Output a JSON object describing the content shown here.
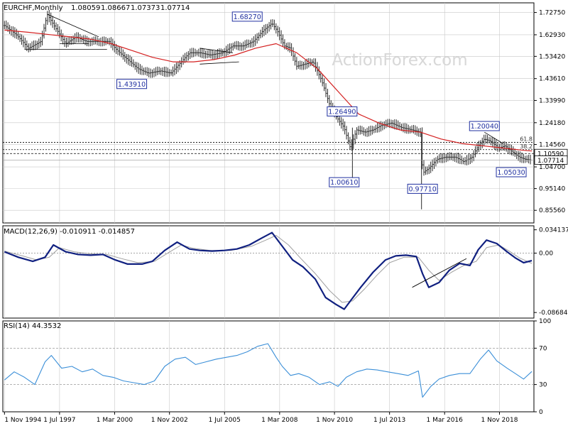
{
  "chart_data": [
    {
      "type": "candlestick",
      "symbol": "EURCHF,Monthly",
      "ohlc": [
        "1.08059",
        "1.08667",
        "1.07373",
        "1.07714"
      ],
      "watermark": "ActionForex.com",
      "ylim": [
        0.8,
        1.77
      ],
      "y_ticks": [
        1.7275,
        1.6293,
        1.5342,
        1.4361,
        1.3399,
        1.2418,
        1.1456,
        1.047,
        0.9514,
        0.8556
      ],
      "y_tick_labels": [
        "1.72750",
        "1.62930",
        "1.53420",
        "1.43610",
        "1.33990",
        "1.24180",
        "1.14560",
        "1.04700",
        "0.95140",
        "0.85560"
      ],
      "x_tick_labels": [
        "1 Nov 1994",
        "1 Jul 1997",
        "1 Mar 2000",
        "1 Nov 2002",
        "1 Jul 2005",
        "1 Mar 2008",
        "1 Nov 2010",
        "1 Jul 2013",
        "1 Mar 2016",
        "1 Nov 2018"
      ],
      "x_ticks": [
        1994.83,
        1997.5,
        2000.17,
        2002.83,
        2005.5,
        2008.17,
        2010.83,
        2013.5,
        2016.17,
        2018.83
      ],
      "xlim": [
        1994.75,
        2020.5
      ],
      "price_path": [
        [
          1994.83,
          1.67
        ],
        [
          1995.4,
          1.63
        ],
        [
          1996.0,
          1.57
        ],
        [
          1996.6,
          1.6
        ],
        [
          1996.9,
          1.72
        ],
        [
          1997.3,
          1.66
        ],
        [
          1997.8,
          1.59
        ],
        [
          1998.3,
          1.62
        ],
        [
          1998.8,
          1.6
        ],
        [
          1999.3,
          1.6
        ],
        [
          1999.9,
          1.6
        ],
        [
          2000.3,
          1.56
        ],
        [
          2000.8,
          1.52
        ],
        [
          2001.3,
          1.48
        ],
        [
          2001.8,
          1.46
        ],
        [
          2002.4,
          1.47
        ],
        [
          2002.9,
          1.46
        ],
        [
          2003.3,
          1.5
        ],
        [
          2003.8,
          1.55
        ],
        [
          2004.3,
          1.55
        ],
        [
          2004.8,
          1.54
        ],
        [
          2005.4,
          1.55
        ],
        [
          2005.9,
          1.58
        ],
        [
          2006.4,
          1.58
        ],
        [
          2006.9,
          1.6
        ],
        [
          2007.4,
          1.65
        ],
        [
          2007.8,
          1.68
        ],
        [
          2008.1,
          1.64
        ],
        [
          2008.4,
          1.58
        ],
        [
          2008.7,
          1.57
        ],
        [
          2009.0,
          1.49
        ],
        [
          2009.4,
          1.5
        ],
        [
          2009.8,
          1.51
        ],
        [
          2010.2,
          1.43
        ],
        [
          2010.6,
          1.32
        ],
        [
          2010.9,
          1.27
        ],
        [
          2011.3,
          1.22
        ],
        [
          2011.6,
          1.13
        ],
        [
          2011.9,
          1.21
        ],
        [
          2012.3,
          1.2
        ],
        [
          2012.7,
          1.21
        ],
        [
          2013.1,
          1.23
        ],
        [
          2013.6,
          1.24
        ],
        [
          2014.1,
          1.22
        ],
        [
          2014.6,
          1.21
        ],
        [
          2015.0,
          1.2
        ],
        [
          2015.1,
          1.02
        ],
        [
          2015.4,
          1.04
        ],
        [
          2015.8,
          1.08
        ],
        [
          2016.2,
          1.09
        ],
        [
          2016.7,
          1.09
        ],
        [
          2017.1,
          1.07
        ],
        [
          2017.5,
          1.09
        ],
        [
          2017.8,
          1.14
        ],
        [
          2018.1,
          1.17
        ],
        [
          2018.4,
          1.16
        ],
        [
          2018.8,
          1.13
        ],
        [
          2019.1,
          1.14
        ],
        [
          2019.5,
          1.11
        ],
        [
          2019.8,
          1.09
        ],
        [
          2020.1,
          1.08
        ],
        [
          2020.4,
          1.077
        ]
      ],
      "ma_path": [
        [
          1994.83,
          1.65
        ],
        [
          1996.0,
          1.64
        ],
        [
          1997.0,
          1.63
        ],
        [
          1998.0,
          1.62
        ],
        [
          1999.0,
          1.61
        ],
        [
          2000.0,
          1.59
        ],
        [
          2001.0,
          1.56
        ],
        [
          2002.0,
          1.53
        ],
        [
          2003.0,
          1.51
        ],
        [
          2004.0,
          1.51
        ],
        [
          2005.0,
          1.52
        ],
        [
          2006.0,
          1.54
        ],
        [
          2007.0,
          1.57
        ],
        [
          2008.0,
          1.59
        ],
        [
          2009.0,
          1.55
        ],
        [
          2010.0,
          1.48
        ],
        [
          2011.0,
          1.38
        ],
        [
          2012.0,
          1.28
        ],
        [
          2013.0,
          1.24
        ],
        [
          2014.0,
          1.21
        ],
        [
          2015.0,
          1.2
        ],
        [
          2016.0,
          1.17
        ],
        [
          2017.0,
          1.15
        ],
        [
          2018.0,
          1.14
        ],
        [
          2019.0,
          1.13
        ],
        [
          2020.0,
          1.12
        ],
        [
          2020.4,
          1.117
        ]
      ],
      "pivot_labels": [
        {
          "text": "1.68270",
          "x": 2006.6,
          "y": 1.6827,
          "side": "above"
        },
        {
          "text": "1.43910",
          "x": 2001.0,
          "y": 1.4391,
          "side": "below"
        },
        {
          "text": "1.26490",
          "x": 2011.2,
          "y": 1.2649,
          "side": "above"
        },
        {
          "text": "1.00610",
          "x": 2011.3,
          "y": 1.0061,
          "side": "below"
        },
        {
          "text": "0.97710",
          "x": 2015.1,
          "y": 0.9771,
          "side": "below"
        },
        {
          "text": "1.20040",
          "x": 2018.1,
          "y": 1.2004,
          "side": "above"
        },
        {
          "text": "1.05030",
          "x": 2019.4,
          "y": 1.0503,
          "side": "below"
        }
      ],
      "fib_levels": [
        {
          "label": "61.8",
          "value": 1.155
        },
        {
          "label": "38.2",
          "value": 1.123
        }
      ],
      "price_tags": [
        {
          "text": "1.10590",
          "value": 1.1059
        },
        {
          "text": "1.07714",
          "value": 1.07714
        }
      ]
    },
    {
      "type": "line",
      "indicator": "MACD(12,26,9) -0.010911 -0.014857",
      "ylim": [
        -0.095,
        0.04
      ],
      "y_ticks": [
        0.034137,
        0.0,
        -0.086849
      ],
      "y_tick_labels": [
        "0.034137",
        "0.00",
        "-0.086849"
      ],
      "macd_path": [
        [
          1994.83,
          0.002
        ],
        [
          1995.5,
          -0.006
        ],
        [
          1996.2,
          -0.012
        ],
        [
          1996.8,
          -0.006
        ],
        [
          1997.2,
          0.012
        ],
        [
          1997.8,
          0.002
        ],
        [
          1998.4,
          -0.002
        ],
        [
          1999.0,
          -0.003
        ],
        [
          1999.6,
          -0.002
        ],
        [
          2000.2,
          -0.01
        ],
        [
          2000.8,
          -0.016
        ],
        [
          2001.5,
          -0.016
        ],
        [
          2002.0,
          -0.012
        ],
        [
          2002.6,
          0.004
        ],
        [
          2003.2,
          0.016
        ],
        [
          2003.8,
          0.006
        ],
        [
          2004.3,
          0.004
        ],
        [
          2004.9,
          0.003
        ],
        [
          2005.5,
          0.004
        ],
        [
          2006.1,
          0.006
        ],
        [
          2006.7,
          0.012
        ],
        [
          2007.3,
          0.022
        ],
        [
          2007.8,
          0.03
        ],
        [
          2008.3,
          0.01
        ],
        [
          2008.8,
          -0.01
        ],
        [
          2009.3,
          -0.02
        ],
        [
          2009.9,
          -0.038
        ],
        [
          2010.4,
          -0.065
        ],
        [
          2010.9,
          -0.075
        ],
        [
          2011.3,
          -0.082
        ],
        [
          2011.6,
          -0.07
        ],
        [
          2012.1,
          -0.05
        ],
        [
          2012.7,
          -0.028
        ],
        [
          2013.3,
          -0.01
        ],
        [
          2013.8,
          -0.004
        ],
        [
          2014.3,
          -0.003
        ],
        [
          2014.8,
          -0.005
        ],
        [
          2015.1,
          -0.03
        ],
        [
          2015.4,
          -0.05
        ],
        [
          2015.9,
          -0.043
        ],
        [
          2016.4,
          -0.025
        ],
        [
          2016.9,
          -0.015
        ],
        [
          2017.4,
          -0.018
        ],
        [
          2017.8,
          0.005
        ],
        [
          2018.2,
          0.019
        ],
        [
          2018.7,
          0.014
        ],
        [
          2019.2,
          0.002
        ],
        [
          2019.6,
          -0.007
        ],
        [
          2020.0,
          -0.014
        ],
        [
          2020.4,
          -0.011
        ]
      ],
      "signal_path": [
        [
          1994.83,
          0.003
        ],
        [
          1995.7,
          -0.004
        ],
        [
          1996.4,
          -0.01
        ],
        [
          1997.0,
          -0.006
        ],
        [
          1997.5,
          0.008
        ],
        [
          1998.2,
          0.002
        ],
        [
          1999.0,
          -0.001
        ],
        [
          1999.8,
          -0.002
        ],
        [
          2000.5,
          -0.008
        ],
        [
          2001.3,
          -0.014
        ],
        [
          2002.1,
          -0.012
        ],
        [
          2002.8,
          0.001
        ],
        [
          2003.4,
          0.012
        ],
        [
          2004.0,
          0.007
        ],
        [
          2004.8,
          0.004
        ],
        [
          2005.8,
          0.004
        ],
        [
          2006.8,
          0.01
        ],
        [
          2007.5,
          0.019
        ],
        [
          2008.0,
          0.026
        ],
        [
          2008.6,
          0.012
        ],
        [
          2009.2,
          -0.008
        ],
        [
          2009.9,
          -0.03
        ],
        [
          2010.6,
          -0.055
        ],
        [
          2011.2,
          -0.072
        ],
        [
          2011.7,
          -0.07
        ],
        [
          2012.3,
          -0.052
        ],
        [
          2012.9,
          -0.032
        ],
        [
          2013.5,
          -0.014
        ],
        [
          2014.2,
          -0.006
        ],
        [
          2014.9,
          -0.006
        ],
        [
          2015.4,
          -0.025
        ],
        [
          2015.9,
          -0.04
        ],
        [
          2016.5,
          -0.028
        ],
        [
          2017.1,
          -0.018
        ],
        [
          2017.7,
          -0.012
        ],
        [
          2018.2,
          0.008
        ],
        [
          2018.8,
          0.012
        ],
        [
          2019.3,
          0.003
        ],
        [
          2019.8,
          -0.007
        ],
        [
          2020.4,
          -0.015
        ]
      ]
    },
    {
      "type": "line",
      "indicator": "RSI(14) 44.3532",
      "ylim": [
        0,
        100
      ],
      "y_ticks": [
        100,
        70,
        30,
        0
      ],
      "y_tick_labels": [
        "100",
        "70",
        "30",
        "0"
      ],
      "rsi_path": [
        [
          1994.83,
          35
        ],
        [
          1995.3,
          44
        ],
        [
          1995.8,
          38
        ],
        [
          1996.3,
          30
        ],
        [
          1996.8,
          55
        ],
        [
          1997.1,
          62
        ],
        [
          1997.6,
          48
        ],
        [
          1998.1,
          50
        ],
        [
          1998.6,
          44
        ],
        [
          1999.1,
          47
        ],
        [
          1999.6,
          40
        ],
        [
          2000.1,
          38
        ],
        [
          2000.6,
          34
        ],
        [
          2001.1,
          32
        ],
        [
          2001.6,
          30
        ],
        [
          2002.1,
          34
        ],
        [
          2002.6,
          50
        ],
        [
          2003.1,
          58
        ],
        [
          2003.6,
          60
        ],
        [
          2004.1,
          52
        ],
        [
          2004.6,
          55
        ],
        [
          2005.1,
          58
        ],
        [
          2005.6,
          60
        ],
        [
          2006.1,
          62
        ],
        [
          2006.6,
          66
        ],
        [
          2007.1,
          72
        ],
        [
          2007.6,
          75
        ],
        [
          2008.0,
          60
        ],
        [
          2008.3,
          50
        ],
        [
          2008.7,
          40
        ],
        [
          2009.1,
          42
        ],
        [
          2009.6,
          38
        ],
        [
          2010.1,
          30
        ],
        [
          2010.6,
          33
        ],
        [
          2011.0,
          28
        ],
        [
          2011.4,
          38
        ],
        [
          2011.9,
          44
        ],
        [
          2012.4,
          47
        ],
        [
          2012.9,
          46
        ],
        [
          2013.4,
          44
        ],
        [
          2013.9,
          42
        ],
        [
          2014.4,
          40
        ],
        [
          2014.9,
          45
        ],
        [
          2015.1,
          16
        ],
        [
          2015.5,
          28
        ],
        [
          2015.9,
          36
        ],
        [
          2016.4,
          40
        ],
        [
          2016.9,
          42
        ],
        [
          2017.4,
          42
        ],
        [
          2017.9,
          58
        ],
        [
          2018.3,
          68
        ],
        [
          2018.7,
          56
        ],
        [
          2019.2,
          48
        ],
        [
          2019.6,
          42
        ],
        [
          2020.0,
          36
        ],
        [
          2020.4,
          44.35
        ]
      ]
    }
  ],
  "colors": {
    "grid": "#c8c8c8",
    "price": "#2b2b2b",
    "ma": "#d42020",
    "macd": "#102080",
    "signal": "#a0a0a0",
    "rsi": "#3b8fd8",
    "label_border": "#2030a0"
  }
}
